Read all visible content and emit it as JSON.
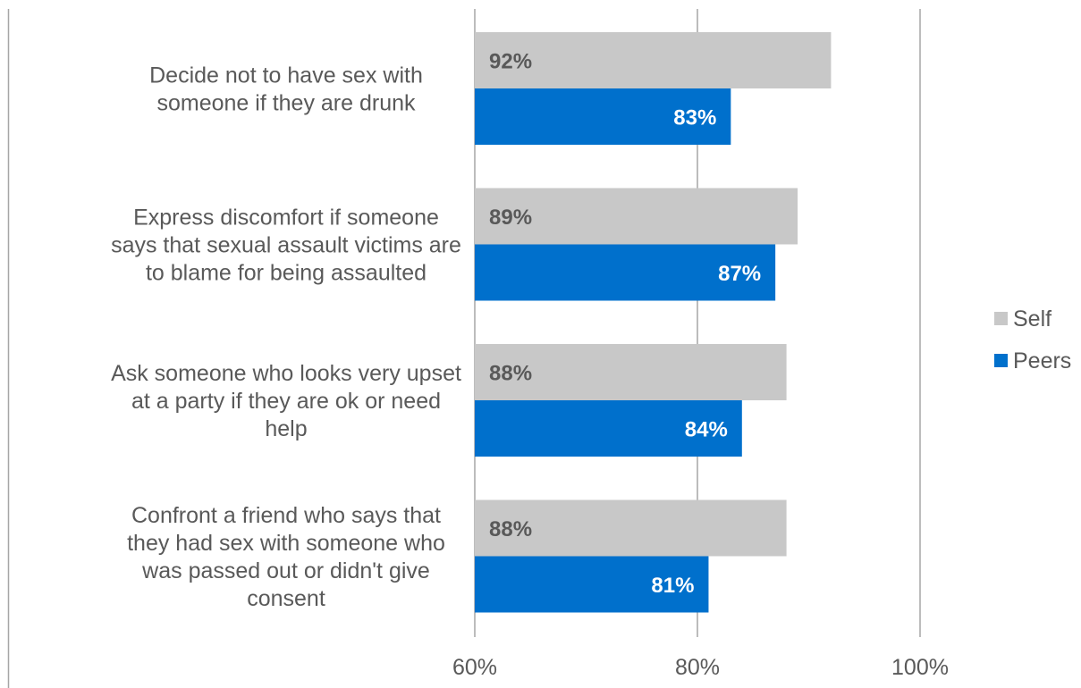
{
  "chart_data": {
    "type": "bar",
    "orientation": "horizontal",
    "categories": [
      [
        "Decide not to have sex with",
        "someone if they are drunk"
      ],
      [
        "Express discomfort if someone",
        "says that sexual assault victims are",
        "to blame for being assaulted"
      ],
      [
        "Ask someone who looks very upset",
        "at a party if they are ok or need",
        "help"
      ],
      [
        "Confront a friend who says that",
        "they had sex with someone who",
        "was passed out or didn't give",
        "consent"
      ]
    ],
    "series": [
      {
        "name": "Self",
        "color": "#c8c8c8",
        "label_color": "#595959",
        "values": [
          92,
          89,
          88,
          88
        ],
        "labels": [
          "92%",
          "89%",
          "88%",
          "88%"
        ]
      },
      {
        "name": "Peers",
        "color": "#0070cc",
        "label_color": "#ffffff",
        "values": [
          83,
          87,
          84,
          81
        ],
        "labels": [
          "83%",
          "87%",
          "84%",
          "81%"
        ]
      }
    ],
    "xlim": [
      60,
      100
    ],
    "xticks": [
      60,
      80,
      100
    ],
    "xtick_labels": [
      "60%",
      "80%",
      "100%"
    ],
    "grid": true,
    "legend": "right",
    "title": "",
    "xlabel": "",
    "ylabel": ""
  }
}
